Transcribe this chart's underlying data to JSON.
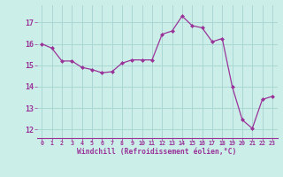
{
  "x": [
    0,
    1,
    2,
    3,
    4,
    5,
    6,
    7,
    8,
    9,
    10,
    11,
    12,
    13,
    14,
    15,
    16,
    17,
    18,
    19,
    20,
    21,
    22,
    23
  ],
  "y": [
    16.0,
    15.8,
    15.2,
    15.2,
    14.9,
    14.8,
    14.65,
    14.7,
    15.1,
    15.25,
    15.25,
    15.25,
    16.45,
    16.6,
    17.3,
    16.85,
    16.75,
    16.1,
    16.25,
    14.0,
    12.45,
    12.05,
    13.4,
    13.55
  ],
  "line_color": "#993399",
  "marker": "D",
  "marker_size": 2.0,
  "bg_color": "#cceee8",
  "grid_color": "#aad8d4",
  "xlabel": "Windchill (Refroidissement éolien,°C)",
  "xlabel_color": "#993399",
  "tick_color": "#993399",
  "ylabel_ticks": [
    12,
    13,
    14,
    15,
    16,
    17
  ],
  "ylim": [
    11.6,
    17.8
  ],
  "xlim": [
    -0.5,
    23.5
  ],
  "xtick_labels": [
    "0",
    "1",
    "2",
    "3",
    "4",
    "5",
    "6",
    "7",
    "8",
    "9",
    "10",
    "11",
    "12",
    "13",
    "14",
    "15",
    "16",
    "17",
    "18",
    "19",
    "20",
    "21",
    "22",
    "23"
  ]
}
